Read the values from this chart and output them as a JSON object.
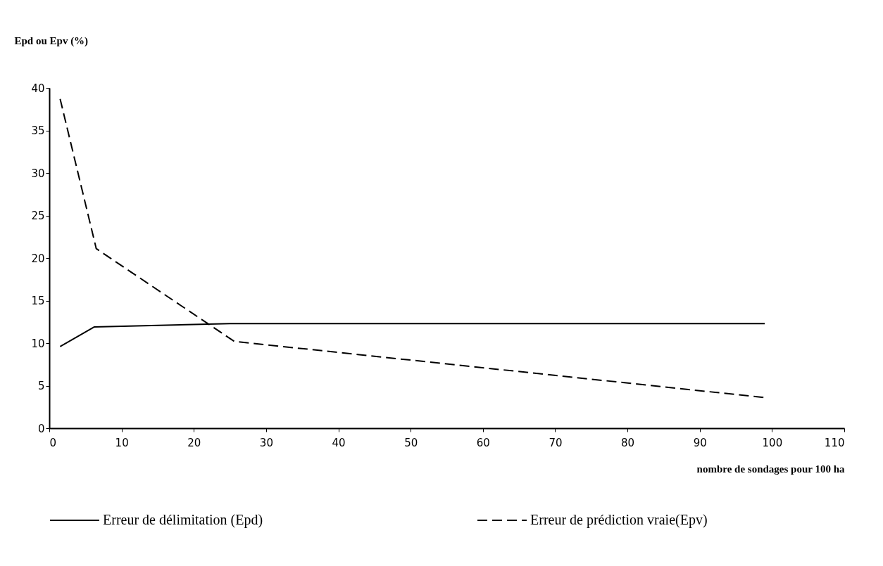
{
  "chart_data": {
    "type": "line",
    "ylabel": "Epd ou Epv (%)",
    "xlabel": "nombre de sondages pour 100 ha",
    "xlim": [
      0,
      110
    ],
    "xticks": [
      0,
      10,
      20,
      30,
      40,
      50,
      60,
      70,
      80,
      90,
      100,
      110
    ],
    "ylim": [
      0,
      40
    ],
    "yticks": [
      0,
      5,
      10,
      15,
      20,
      25,
      30,
      35,
      40
    ],
    "grid": false,
    "legend": "bottom",
    "marker": "none",
    "series": [
      {
        "name": "Erreur de délimitation (Epd)",
        "color": "#000000",
        "line_style": "solid",
        "x": [
          1.5,
          6.2,
          25,
          99
        ],
        "values": [
          9.6,
          11.9,
          12.3,
          12.3
        ]
      },
      {
        "name": "Erreur de prédiction vraie(Epv)",
        "color": "#000000",
        "line_style": "dashed",
        "x": [
          1.5,
          6.5,
          25.6,
          99
        ],
        "values": [
          38.7,
          21.1,
          10.2,
          3.6
        ]
      }
    ]
  }
}
